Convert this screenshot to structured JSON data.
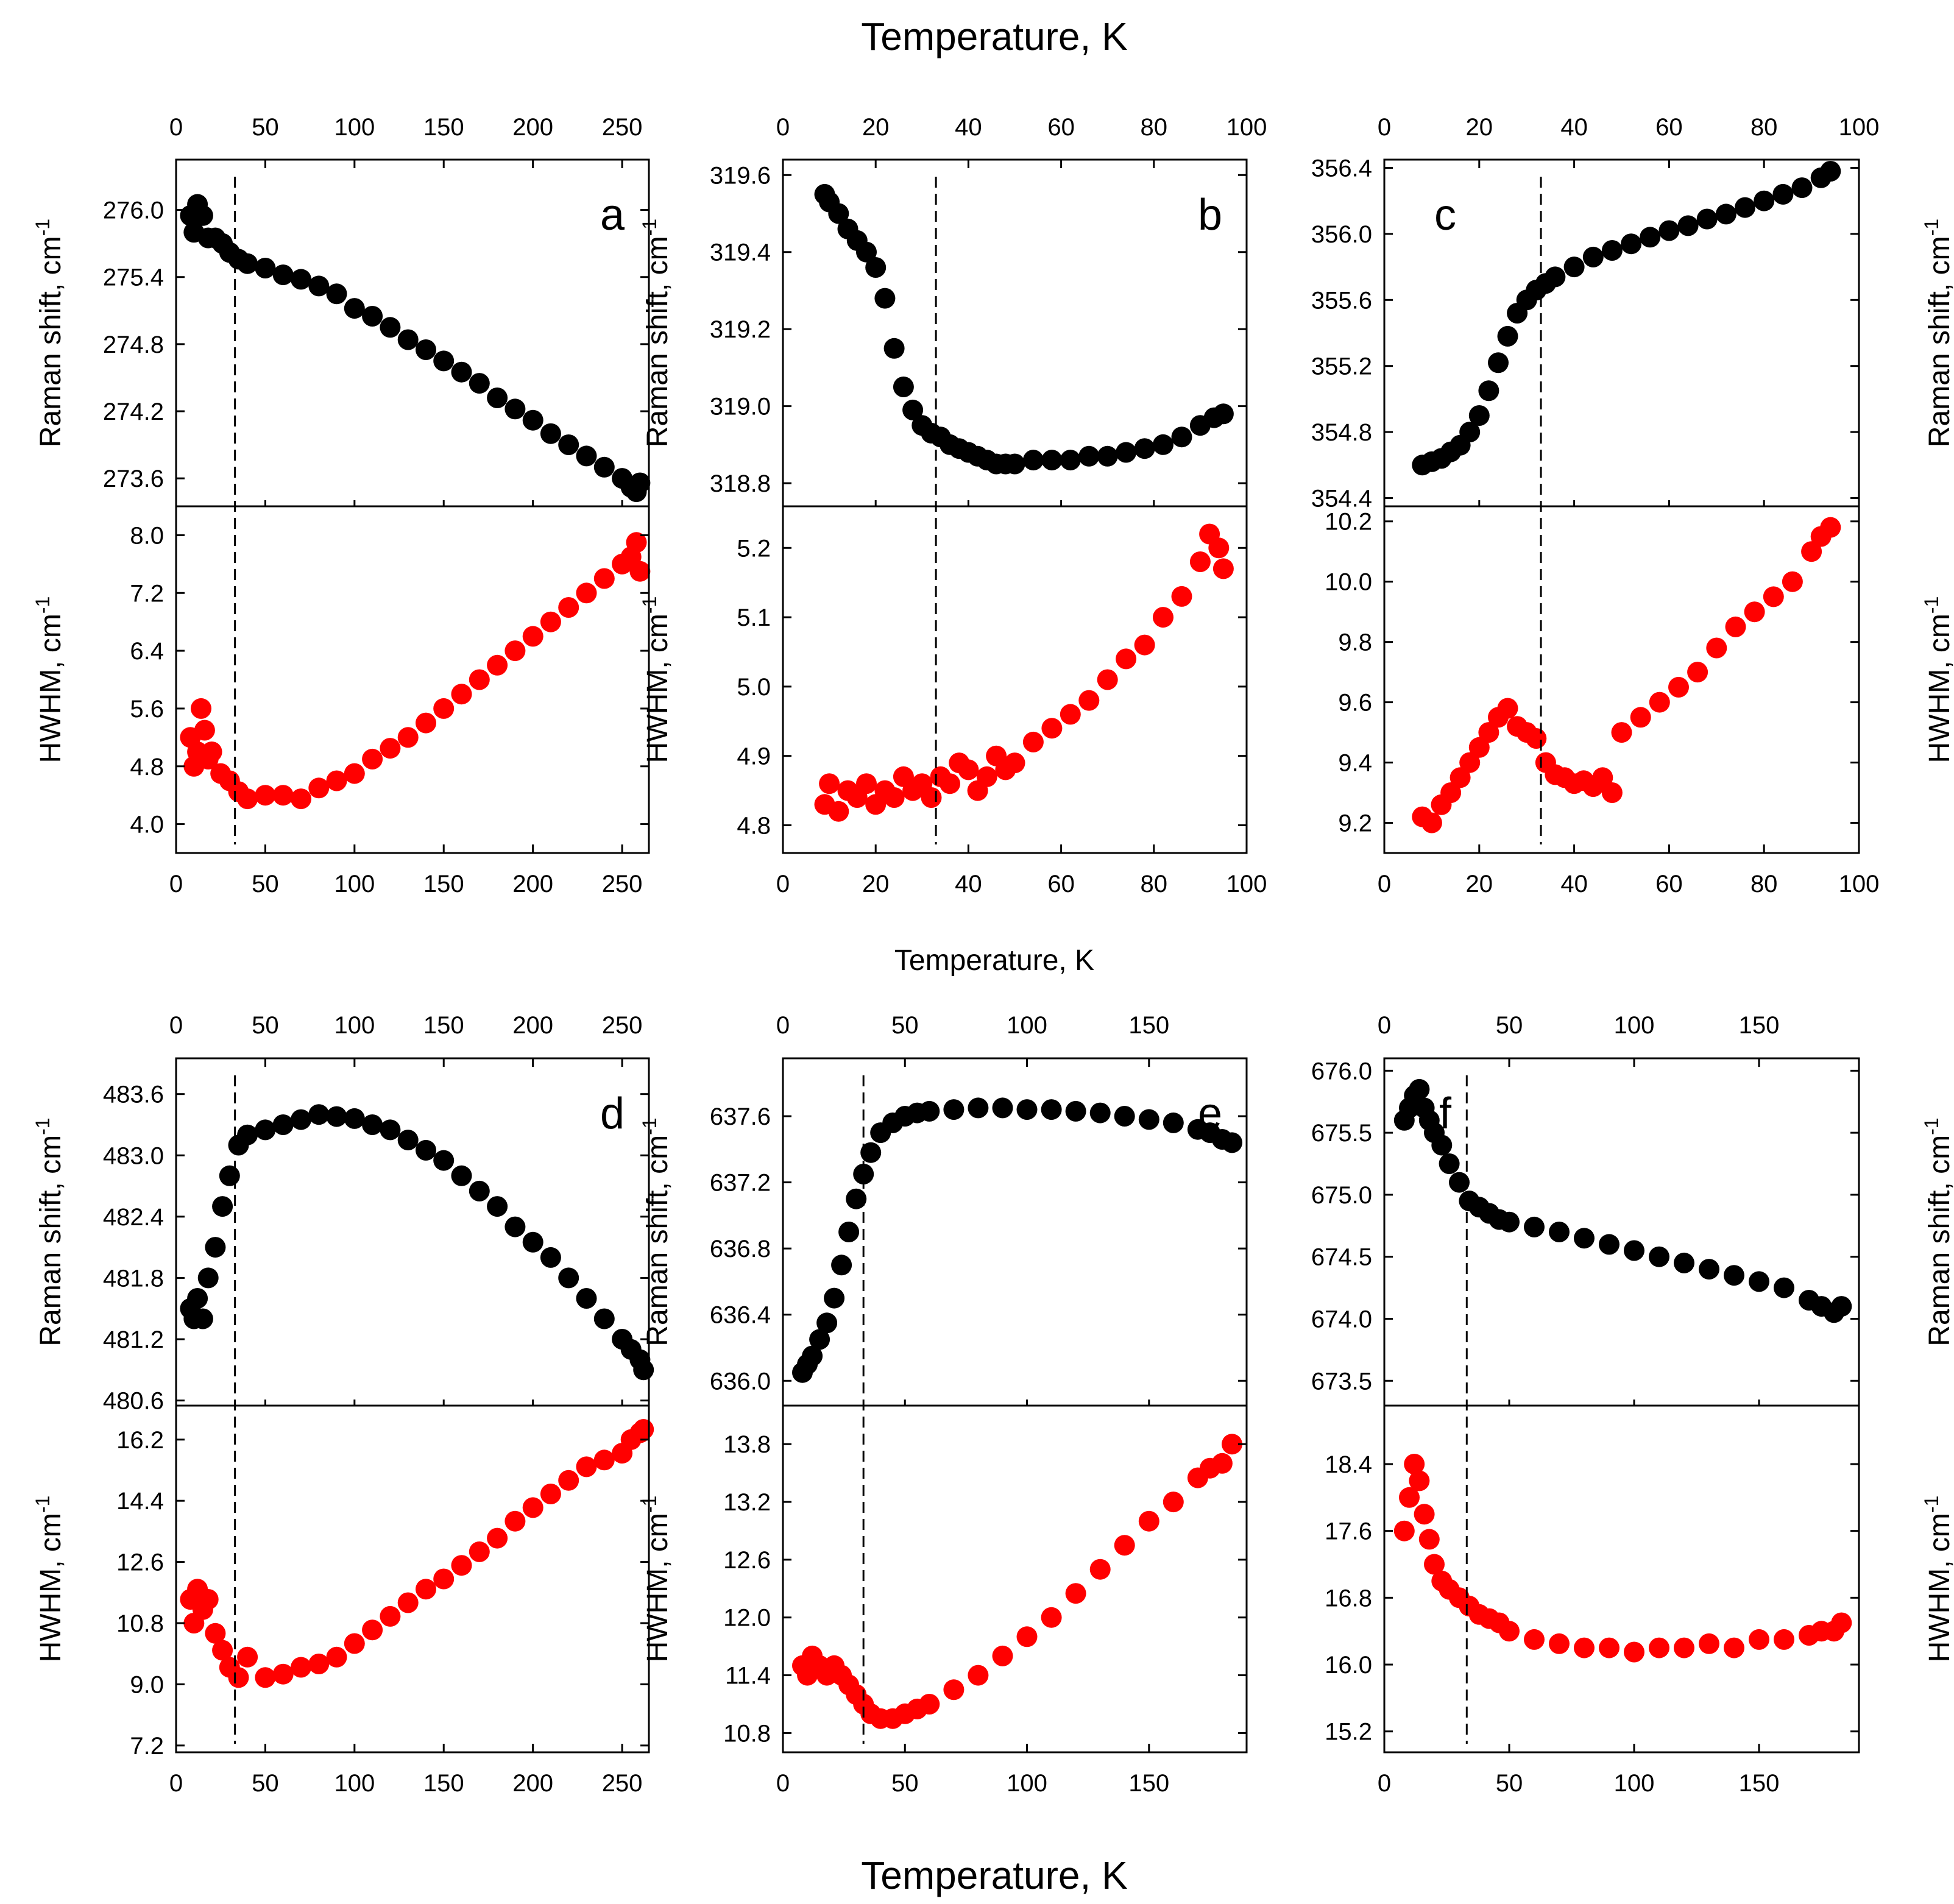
{
  "titles": {
    "top": "Temperature, K",
    "middle": "Temperature, K",
    "bottom": "Temperature, K",
    "raman_axis": "Raman shift, cm",
    "hwhm_axis": "HWHM, cm",
    "superscript": "-1"
  },
  "colors": {
    "raman": "#000000",
    "hwhm": "#ff0000",
    "axis": "#000000"
  },
  "chart_data": [
    {
      "type": "scatter",
      "panel": "a",
      "xlabel": "Temperature, K",
      "transition_T": 33,
      "xlim": [
        0,
        265
      ],
      "xticks": [
        0,
        50,
        100,
        150,
        200,
        250
      ],
      "raman": {
        "ylabel": "Raman shift, cm-1",
        "ylim": [
          273.35,
          276.45
        ],
        "yticks": [
          273.6,
          274.2,
          274.8,
          275.4,
          276.0
        ],
        "x": [
          8,
          10,
          12,
          15,
          18,
          22,
          26,
          30,
          35,
          40,
          50,
          60,
          70,
          80,
          90,
          100,
          110,
          120,
          130,
          140,
          150,
          160,
          170,
          180,
          190,
          200,
          210,
          220,
          230,
          240,
          250,
          255,
          258,
          260
        ],
        "y": [
          275.95,
          275.8,
          276.05,
          275.95,
          275.75,
          275.75,
          275.7,
          275.62,
          275.56,
          275.52,
          275.48,
          275.42,
          275.38,
          275.32,
          275.25,
          275.12,
          275.05,
          274.95,
          274.84,
          274.75,
          274.65,
          274.55,
          274.45,
          274.32,
          274.22,
          274.12,
          274.0,
          273.9,
          273.8,
          273.7,
          273.6,
          273.52,
          273.48,
          273.56
        ]
      },
      "hwhm": {
        "ylabel": "HWHM, cm-1",
        "ylim": [
          3.6,
          8.4
        ],
        "yticks": [
          4.0,
          4.8,
          5.6,
          6.4,
          7.2,
          8.0
        ],
        "x": [
          8,
          10,
          12,
          14,
          16,
          18,
          20,
          25,
          30,
          35,
          40,
          50,
          60,
          70,
          80,
          90,
          100,
          110,
          120,
          130,
          140,
          150,
          160,
          170,
          180,
          190,
          200,
          210,
          220,
          230,
          240,
          250,
          255,
          258,
          260
        ],
        "y": [
          5.2,
          4.8,
          5.0,
          5.6,
          5.3,
          4.9,
          5.0,
          4.7,
          4.6,
          4.45,
          4.35,
          4.4,
          4.4,
          4.35,
          4.5,
          4.6,
          4.7,
          4.9,
          5.05,
          5.2,
          5.4,
          5.6,
          5.8,
          6.0,
          6.2,
          6.4,
          6.6,
          6.8,
          7.0,
          7.2,
          7.4,
          7.6,
          7.7,
          7.9,
          7.5
        ]
      }
    },
    {
      "type": "scatter",
      "panel": "b",
      "xlabel": "Temperature, K",
      "transition_T": 33,
      "xlim": [
        0,
        100
      ],
      "xticks": [
        0,
        20,
        40,
        60,
        80,
        100
      ],
      "raman": {
        "ylabel": "Raman shift, cm-1",
        "ylim": [
          318.74,
          319.64
        ],
        "yticks": [
          318.8,
          319.0,
          319.2,
          319.4,
          319.6
        ],
        "x": [
          9,
          10,
          12,
          14,
          16,
          18,
          20,
          22,
          24,
          26,
          28,
          30,
          32,
          34,
          36,
          38,
          40,
          42,
          44,
          46,
          48,
          50,
          54,
          58,
          62,
          66,
          70,
          74,
          78,
          82,
          86,
          90,
          93,
          95
        ],
        "y": [
          319.55,
          319.53,
          319.5,
          319.46,
          319.43,
          319.4,
          319.36,
          319.28,
          319.15,
          319.05,
          318.99,
          318.95,
          318.93,
          318.92,
          318.9,
          318.89,
          318.88,
          318.87,
          318.86,
          318.85,
          318.85,
          318.85,
          318.86,
          318.86,
          318.86,
          318.87,
          318.87,
          318.88,
          318.89,
          318.9,
          318.92,
          318.95,
          318.97,
          318.98
        ]
      },
      "hwhm": {
        "ylabel": "HWHM, cm-1",
        "ylim": [
          4.76,
          5.26
        ],
        "yticks": [
          4.8,
          4.9,
          5.0,
          5.1,
          5.2
        ],
        "x": [
          9,
          10,
          12,
          14,
          16,
          18,
          20,
          22,
          24,
          26,
          28,
          30,
          32,
          34,
          36,
          38,
          40,
          42,
          44,
          46,
          48,
          50,
          54,
          58,
          62,
          66,
          70,
          74,
          78,
          82,
          86,
          90,
          92,
          94,
          95
        ],
        "y": [
          4.83,
          4.86,
          4.82,
          4.85,
          4.84,
          4.86,
          4.83,
          4.85,
          4.84,
          4.87,
          4.85,
          4.86,
          4.84,
          4.87,
          4.86,
          4.89,
          4.88,
          4.85,
          4.87,
          4.9,
          4.88,
          4.89,
          4.92,
          4.94,
          4.96,
          4.98,
          5.01,
          5.04,
          5.06,
          5.1,
          5.13,
          5.18,
          5.22,
          5.2,
          5.17
        ]
      }
    },
    {
      "type": "scatter",
      "panel": "c",
      "xlabel": "Temperature, K",
      "transition_T": 33,
      "xlim": [
        0,
        100
      ],
      "xticks": [
        0,
        20,
        40,
        60,
        80,
        100
      ],
      "raman": {
        "ylabel": "Raman shift, cm-1",
        "ylim": [
          354.35,
          356.45
        ],
        "yticks": [
          354.4,
          354.8,
          355.2,
          355.6,
          356.0,
          356.4
        ],
        "x": [
          8,
          10,
          12,
          14,
          16,
          18,
          20,
          22,
          24,
          26,
          28,
          30,
          32,
          34,
          36,
          40,
          44,
          48,
          52,
          56,
          60,
          64,
          68,
          72,
          76,
          80,
          84,
          88,
          92,
          94
        ],
        "y": [
          354.6,
          354.62,
          354.64,
          354.68,
          354.72,
          354.8,
          354.9,
          355.05,
          355.22,
          355.38,
          355.52,
          355.6,
          355.66,
          355.7,
          355.74,
          355.8,
          355.86,
          355.9,
          355.94,
          355.98,
          356.02,
          356.05,
          356.09,
          356.12,
          356.16,
          356.2,
          356.24,
          356.28,
          356.34,
          356.38
        ]
      },
      "hwhm": {
        "ylabel": "HWHM, cm-1",
        "ylim": [
          9.1,
          10.25
        ],
        "yticks": [
          9.2,
          9.4,
          9.6,
          9.8,
          10.0,
          10.2
        ],
        "x": [
          8,
          10,
          12,
          14,
          16,
          18,
          20,
          22,
          24,
          26,
          28,
          30,
          32,
          34,
          36,
          38,
          40,
          42,
          44,
          46,
          48,
          50,
          54,
          58,
          62,
          66,
          70,
          74,
          78,
          82,
          86,
          90,
          92,
          94
        ],
        "y": [
          9.22,
          9.2,
          9.26,
          9.3,
          9.35,
          9.4,
          9.45,
          9.5,
          9.55,
          9.58,
          9.52,
          9.5,
          9.48,
          9.4,
          9.36,
          9.35,
          9.33,
          9.34,
          9.32,
          9.35,
          9.3,
          9.5,
          9.55,
          9.6,
          9.65,
          9.7,
          9.78,
          9.85,
          9.9,
          9.95,
          10.0,
          10.1,
          10.15,
          10.18
        ]
      }
    },
    {
      "type": "scatter",
      "panel": "d",
      "xlabel": "Temperature, K",
      "transition_T": 33,
      "xlim": [
        0,
        265
      ],
      "xticks": [
        0,
        50,
        100,
        150,
        200,
        250
      ],
      "raman": {
        "ylabel": "Raman shift, cm-1",
        "ylim": [
          480.55,
          483.95
        ],
        "yticks": [
          480.6,
          481.2,
          481.8,
          482.4,
          483.0,
          483.6
        ],
        "x": [
          8,
          10,
          12,
          15,
          18,
          22,
          26,
          30,
          35,
          40,
          50,
          60,
          70,
          80,
          90,
          100,
          110,
          120,
          130,
          140,
          150,
          160,
          170,
          180,
          190,
          200,
          210,
          220,
          230,
          240,
          250,
          255,
          260,
          262
        ],
        "y": [
          481.5,
          481.4,
          481.6,
          481.4,
          481.8,
          482.1,
          482.5,
          482.8,
          483.1,
          483.2,
          483.25,
          483.3,
          483.35,
          483.4,
          483.38,
          483.36,
          483.3,
          483.25,
          483.15,
          483.05,
          482.95,
          482.8,
          482.65,
          482.5,
          482.3,
          482.15,
          482.0,
          481.8,
          481.6,
          481.4,
          481.2,
          481.1,
          481.0,
          480.9
        ]
      },
      "hwhm": {
        "ylabel": "HWHM, cm-1",
        "ylim": [
          7.0,
          17.2
        ],
        "yticks": [
          7.2,
          9.0,
          10.8,
          12.6,
          14.4,
          16.2
        ],
        "x": [
          8,
          10,
          12,
          15,
          18,
          22,
          26,
          30,
          35,
          40,
          50,
          60,
          70,
          80,
          90,
          100,
          110,
          120,
          130,
          140,
          150,
          160,
          170,
          180,
          190,
          200,
          210,
          220,
          230,
          240,
          250,
          255,
          260,
          262
        ],
        "y": [
          11.5,
          10.8,
          11.8,
          11.2,
          11.5,
          10.5,
          10.0,
          9.5,
          9.2,
          9.8,
          9.2,
          9.3,
          9.5,
          9.6,
          9.8,
          10.2,
          10.6,
          11.0,
          11.4,
          11.8,
          12.1,
          12.5,
          12.9,
          13.3,
          13.8,
          14.2,
          14.6,
          15.0,
          15.4,
          15.6,
          15.8,
          16.2,
          16.4,
          16.5
        ]
      }
    },
    {
      "type": "scatter",
      "panel": "e",
      "xlabel": "Temperature, K",
      "transition_T": 33,
      "xlim": [
        0,
        190
      ],
      "xticks": [
        0,
        50,
        100,
        150
      ],
      "raman": {
        "ylabel": "Raman shift, cm-1",
        "ylim": [
          635.85,
          637.95
        ],
        "yticks": [
          636.0,
          636.4,
          636.8,
          637.2,
          637.6
        ],
        "x": [
          8,
          10,
          12,
          15,
          18,
          21,
          24,
          27,
          30,
          33,
          36,
          40,
          45,
          50,
          55,
          60,
          70,
          80,
          90,
          100,
          110,
          120,
          130,
          140,
          150,
          160,
          170,
          175,
          180,
          184
        ],
        "y": [
          636.05,
          636.1,
          636.15,
          636.25,
          636.35,
          636.5,
          636.7,
          636.9,
          637.1,
          637.25,
          637.38,
          637.5,
          637.56,
          637.6,
          637.62,
          637.63,
          637.64,
          637.65,
          637.65,
          637.64,
          637.64,
          637.63,
          637.62,
          637.6,
          637.58,
          637.56,
          637.52,
          637.5,
          637.46,
          637.44
        ]
      },
      "hwhm": {
        "ylabel": "HWHM, cm-1",
        "ylim": [
          10.6,
          14.2
        ],
        "yticks": [
          10.8,
          11.4,
          12.0,
          12.6,
          13.2,
          13.8
        ],
        "x": [
          8,
          10,
          12,
          15,
          18,
          21,
          24,
          27,
          30,
          33,
          36,
          40,
          45,
          50,
          55,
          60,
          70,
          80,
          90,
          100,
          110,
          120,
          130,
          140,
          150,
          160,
          170,
          175,
          180,
          184
        ],
        "y": [
          11.5,
          11.4,
          11.6,
          11.5,
          11.4,
          11.5,
          11.4,
          11.3,
          11.2,
          11.1,
          11.0,
          10.95,
          10.95,
          11.0,
          11.05,
          11.1,
          11.25,
          11.4,
          11.6,
          11.8,
          12.0,
          12.25,
          12.5,
          12.75,
          13.0,
          13.2,
          13.45,
          13.55,
          13.6,
          13.8
        ]
      }
    },
    {
      "type": "scatter",
      "panel": "f",
      "xlabel": "Temperature, K",
      "transition_T": 33,
      "xlim": [
        0,
        190
      ],
      "xticks": [
        0,
        50,
        100,
        150
      ],
      "raman": {
        "ylabel": "Raman shift, cm-1",
        "ylim": [
          673.3,
          676.1
        ],
        "yticks": [
          673.5,
          674.0,
          674.5,
          675.0,
          675.5,
          676.0
        ],
        "x": [
          8,
          10,
          12,
          14,
          16,
          18,
          20,
          23,
          26,
          30,
          34,
          38,
          42,
          46,
          50,
          60,
          70,
          80,
          90,
          100,
          110,
          120,
          130,
          140,
          150,
          160,
          170,
          175,
          180,
          183
        ],
        "y": [
          675.6,
          675.7,
          675.8,
          675.85,
          675.7,
          675.6,
          675.5,
          675.4,
          675.25,
          675.1,
          674.95,
          674.9,
          674.85,
          674.8,
          674.78,
          674.74,
          674.7,
          674.65,
          674.6,
          674.55,
          674.5,
          674.45,
          674.4,
          674.35,
          674.3,
          674.25,
          674.15,
          674.1,
          674.05,
          674.1
        ]
      },
      "hwhm": {
        "ylabel": "HWHM, cm-1",
        "ylim": [
          14.95,
          19.1
        ],
        "yticks": [
          15.2,
          16.0,
          16.8,
          17.6,
          18.4
        ],
        "x": [
          8,
          10,
          12,
          14,
          16,
          18,
          20,
          23,
          26,
          30,
          34,
          38,
          42,
          46,
          50,
          60,
          70,
          80,
          90,
          100,
          110,
          120,
          130,
          140,
          150,
          160,
          170,
          175,
          180,
          183
        ],
        "y": [
          17.6,
          18.0,
          18.4,
          18.2,
          17.8,
          17.5,
          17.2,
          17.0,
          16.9,
          16.8,
          16.7,
          16.6,
          16.55,
          16.5,
          16.4,
          16.3,
          16.25,
          16.2,
          16.2,
          16.15,
          16.2,
          16.2,
          16.25,
          16.2,
          16.3,
          16.3,
          16.35,
          16.4,
          16.4,
          16.5
        ]
      }
    }
  ]
}
